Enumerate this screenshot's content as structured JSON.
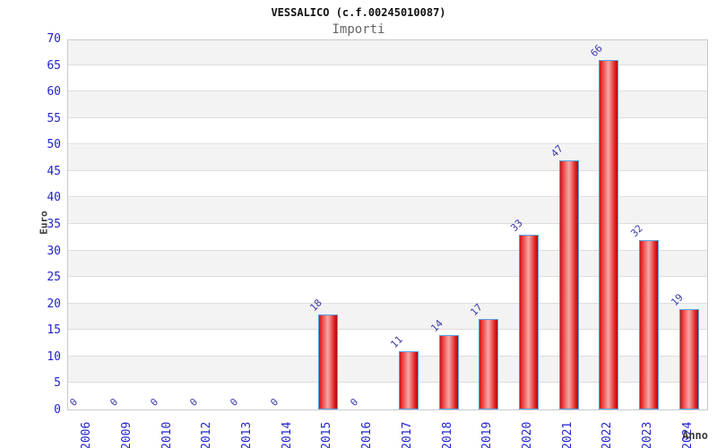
{
  "header": {
    "title": "VESSALICO (c.f.00245010087)",
    "subtitle": "Importi"
  },
  "chart_data": {
    "type": "bar",
    "title": "VESSALICO (c.f.00245010087)",
    "subtitle": "Importi",
    "categories": [
      "2006",
      "2009",
      "2010",
      "2012",
      "2013",
      "2014",
      "2015",
      "2016",
      "2017",
      "2018",
      "2019",
      "2020",
      "2021",
      "2022",
      "2023",
      "2024"
    ],
    "values": [
      0,
      0,
      0,
      0,
      0,
      0,
      18,
      0,
      11,
      14,
      17,
      33,
      47,
      66,
      32,
      19
    ],
    "xlabel": "Anno",
    "ylabel": "Euro",
    "ylim": [
      0,
      70
    ],
    "ytick_step": 5,
    "yticks": [
      0,
      5,
      10,
      15,
      20,
      25,
      30,
      35,
      40,
      45,
      50,
      55,
      60,
      65,
      70
    ],
    "grid": "alternating-horizontal-bands",
    "legend": "none",
    "colors": {
      "bar_fill": "#e62222",
      "bar_fill_light": "#f6a6a6",
      "bar_border": "#57a0e0",
      "axis_tick_text": "#2323cd",
      "value_label_text": "#3838a8",
      "band_gray": "#f3f3f3",
      "band_white": "#ffffff",
      "axis_title_text": "#3a3a3a",
      "title_text": "#111111",
      "subtitle_text": "#666666"
    }
  }
}
